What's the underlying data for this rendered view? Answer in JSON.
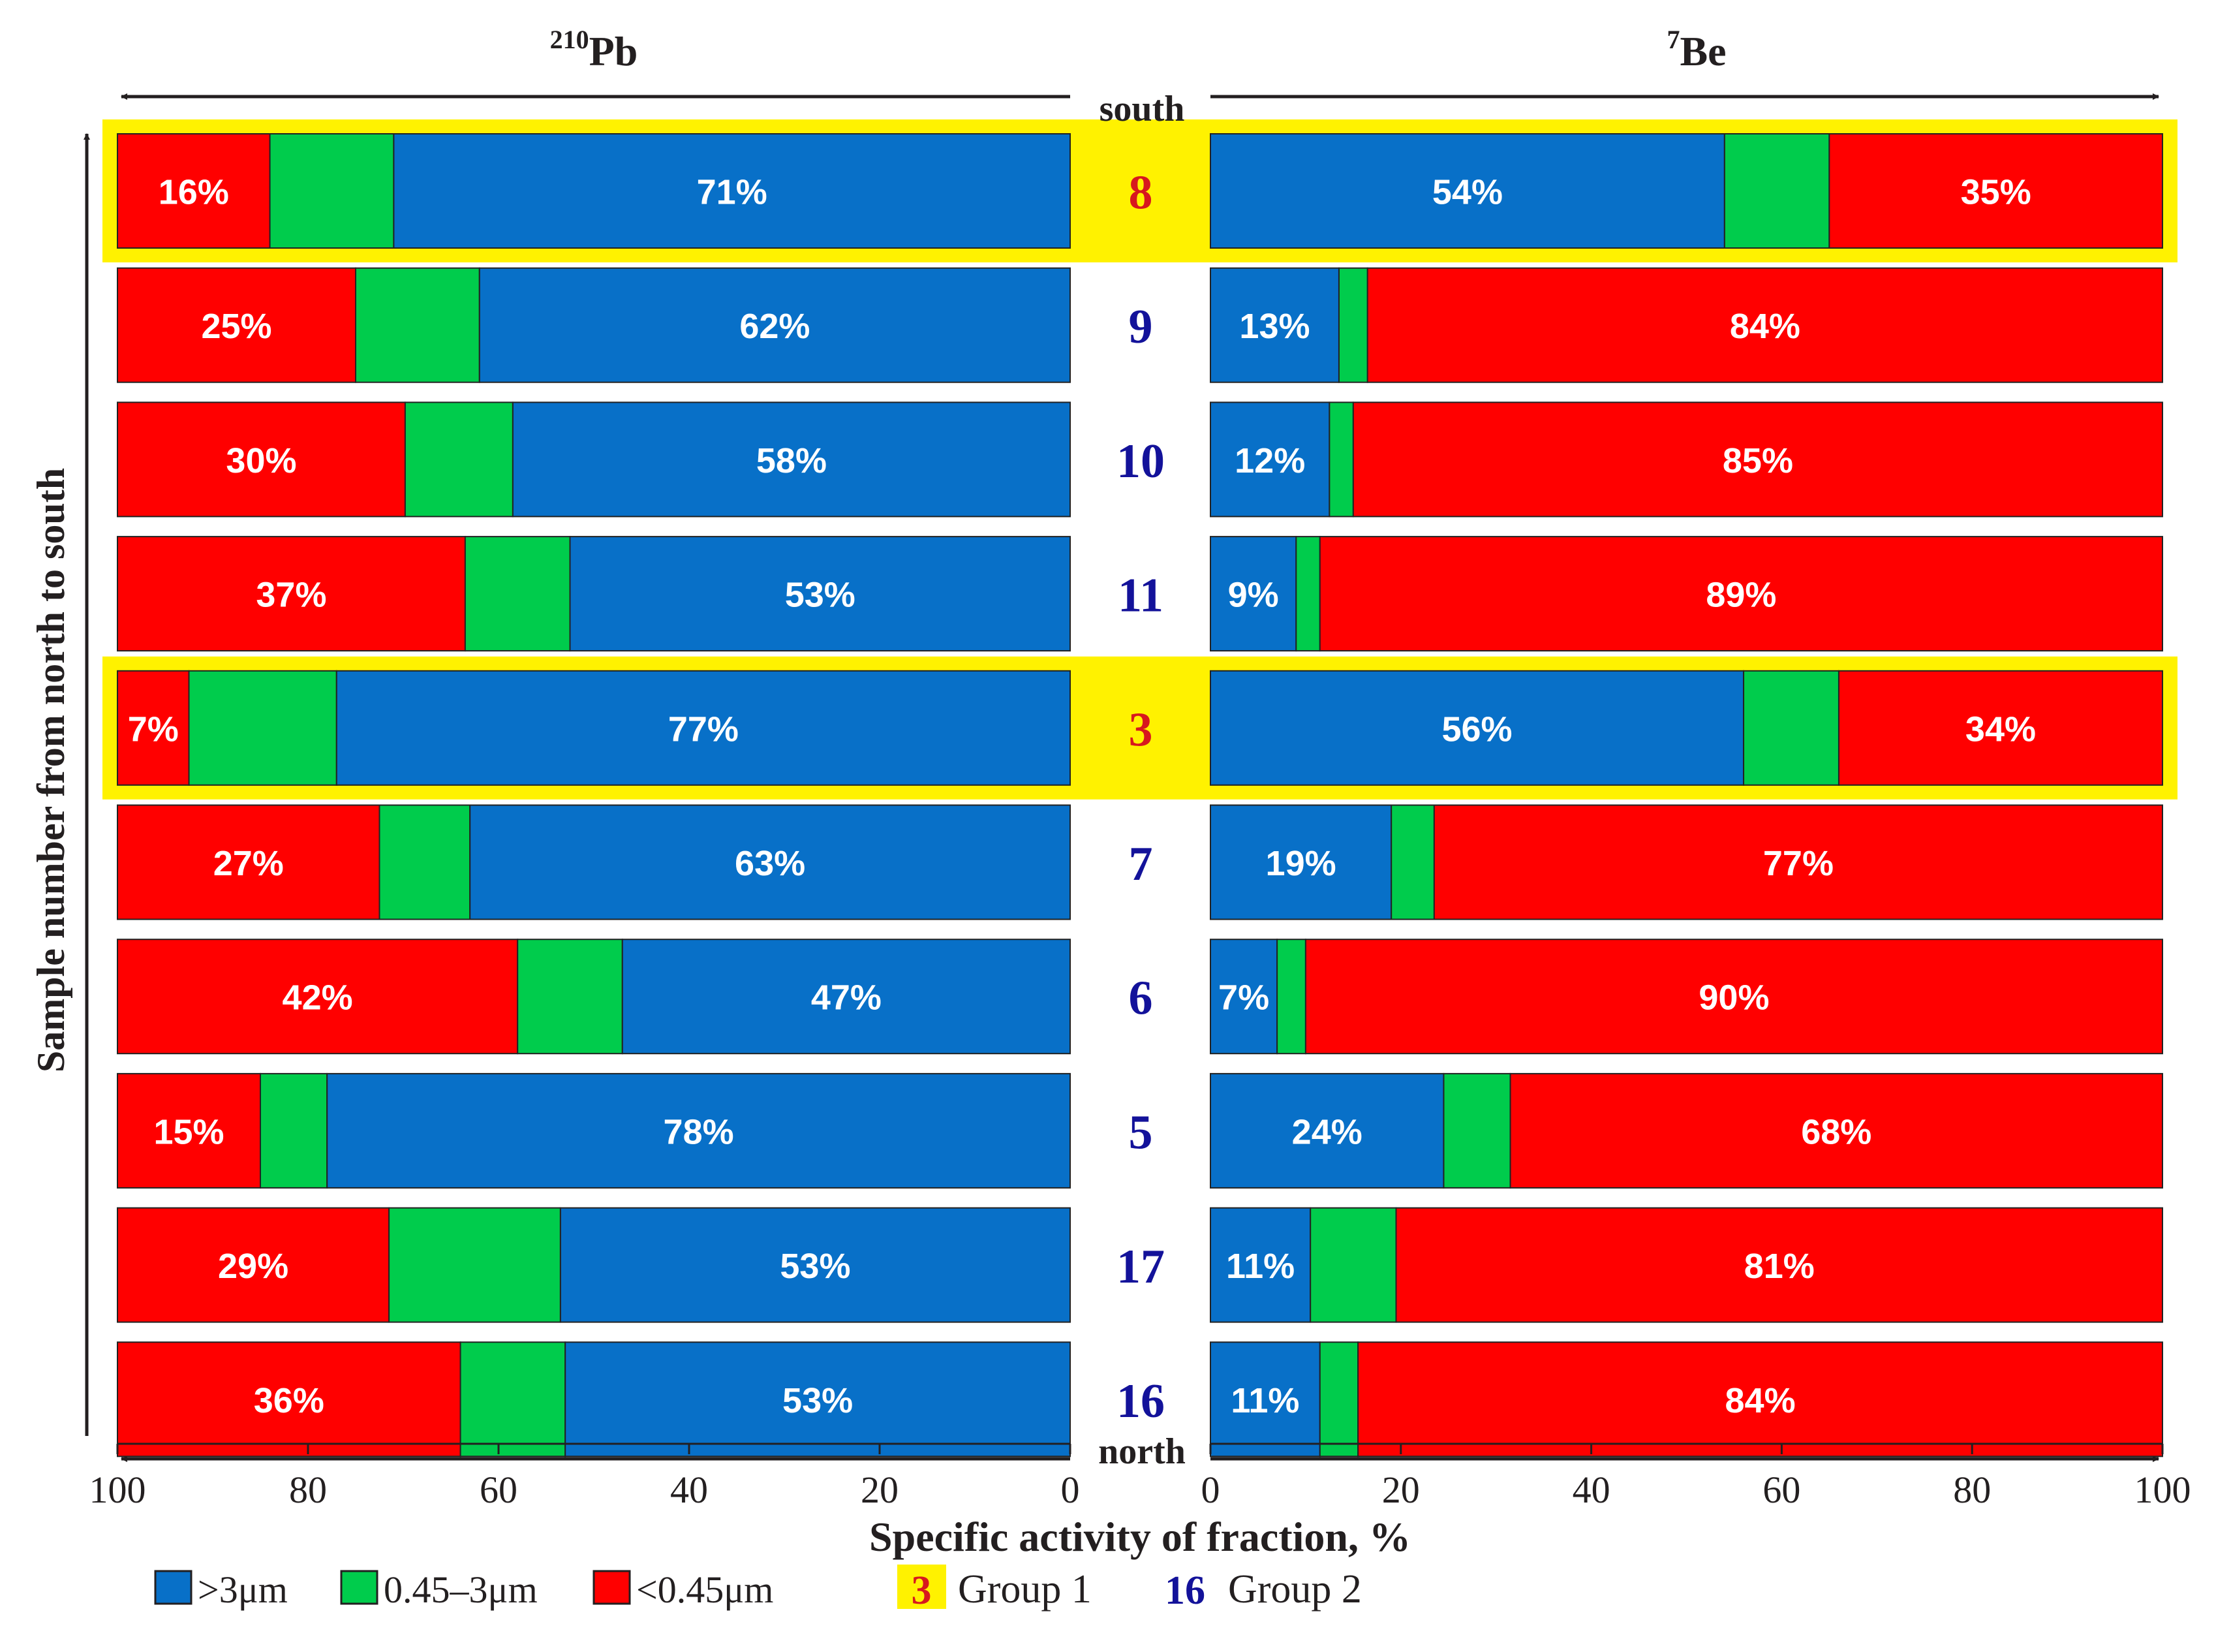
{
  "chart_data": {
    "type": "bar",
    "orientation": "horizontal-stacked",
    "xlabel": "Specific activity of fraction, %",
    "ylabel": "Sample number from north to south",
    "direction_labels": {
      "top": "south",
      "bottom": "north"
    },
    "xlim": [
      0,
      100
    ],
    "x_ticks": [
      0,
      20,
      40,
      60,
      80,
      100
    ],
    "panels": [
      {
        "key": "pb",
        "title_sup": "210",
        "title_main": "Pb"
      },
      {
        "key": "be",
        "title_sup": "7",
        "title_main": "Be"
      }
    ],
    "series_order": [
      ">3μm",
      "0.45–3μm",
      "<0.45μm"
    ],
    "colors": {
      ">3μm": "#0870c8",
      "0.45–3μm": "#00cc4c",
      "<0.45μm": "#ff0000"
    },
    "group_colors": {
      "1": "#d7181e",
      "2": "#13129a"
    },
    "highlight_color": "#fff200",
    "samples": [
      {
        "id": "8",
        "group": 1,
        "pb": {
          "gt3": 71,
          "mid": 13,
          "lt045": 16
        },
        "be": {
          "gt3": 54,
          "mid": 11,
          "lt045": 35
        },
        "labels": {
          "pb_gt3": "71%",
          "pb_lt045": "16%",
          "be_gt3": "54%",
          "be_lt045": "35%"
        }
      },
      {
        "id": "9",
        "group": 2,
        "pb": {
          "gt3": 62,
          "mid": 13,
          "lt045": 25
        },
        "be": {
          "gt3": 13.5,
          "mid": 3,
          "lt045": 83.5
        },
        "labels": {
          "pb_gt3": "62%",
          "pb_lt045": "25%",
          "be_gt3": "13%",
          "be_lt045": "84%"
        }
      },
      {
        "id": "10",
        "group": 2,
        "pb": {
          "gt3": 58.5,
          "mid": 11.3,
          "lt045": 30.2
        },
        "be": {
          "gt3": 12.5,
          "mid": 2.5,
          "lt045": 85
        },
        "labels": {
          "pb_gt3": "58%",
          "pb_lt045": "30%",
          "be_gt3": "12%",
          "be_lt045": "85%"
        }
      },
      {
        "id": "11",
        "group": 2,
        "pb": {
          "gt3": 52.5,
          "mid": 11,
          "lt045": 36.5
        },
        "be": {
          "gt3": 9,
          "mid": 2.5,
          "lt045": 88.5
        },
        "labels": {
          "pb_gt3": "53%",
          "pb_lt045": "37%",
          "be_gt3": "9%",
          "be_lt045": "89%"
        }
      },
      {
        "id": "3",
        "group": 1,
        "pb": {
          "gt3": 77,
          "mid": 15.5,
          "lt045": 7.5
        },
        "be": {
          "gt3": 56,
          "mid": 10,
          "lt045": 34
        },
        "labels": {
          "pb_gt3": "77%",
          "pb_lt045": "7%",
          "be_gt3": "56%",
          "be_lt045": "34%"
        }
      },
      {
        "id": "7",
        "group": 2,
        "pb": {
          "gt3": 63,
          "mid": 9.5,
          "lt045": 27.5
        },
        "be": {
          "gt3": 19,
          "mid": 4.5,
          "lt045": 76.5
        },
        "labels": {
          "pb_gt3": "63%",
          "pb_lt045": "27%",
          "be_gt3": "19%",
          "be_lt045": "77%"
        }
      },
      {
        "id": "6",
        "group": 2,
        "pb": {
          "gt3": 47,
          "mid": 11,
          "lt045": 42
        },
        "be": {
          "gt3": 7,
          "mid": 3,
          "lt045": 90
        },
        "labels": {
          "pb_gt3": "47%",
          "pb_lt045": "42%",
          "be_gt3": "7%",
          "be_lt045": "90%"
        }
      },
      {
        "id": "5",
        "group": 2,
        "pb": {
          "gt3": 78,
          "mid": 7,
          "lt045": 15
        },
        "be": {
          "gt3": 24.5,
          "mid": 7,
          "lt045": 68.5
        },
        "labels": {
          "pb_gt3": "78%",
          "pb_lt045": "15%",
          "be_gt3": "24%",
          "be_lt045": "68%"
        }
      },
      {
        "id": "17",
        "group": 2,
        "pb": {
          "gt3": 53.5,
          "mid": 18,
          "lt045": 28.5
        },
        "be": {
          "gt3": 10.5,
          "mid": 9,
          "lt045": 80.5
        },
        "labels": {
          "pb_gt3": "53%",
          "pb_lt045": "29%",
          "be_gt3": "11%",
          "be_lt045": "81%"
        }
      },
      {
        "id": "16",
        "group": 2,
        "pb": {
          "gt3": 53,
          "mid": 11,
          "lt045": 36
        },
        "be": {
          "gt3": 11.5,
          "mid": 4,
          "lt045": 84.5
        },
        "labels": {
          "pb_gt3": "53%",
          "pb_lt045": "36%",
          "be_gt3": "11%",
          "be_lt045": "84%"
        }
      }
    ],
    "legend": {
      "position": "bottom",
      "fractions": [
        {
          "key": "gt3",
          "label": ">3μm"
        },
        {
          "key": "mid",
          "label": "0.45–3μm"
        },
        {
          "key": "lt045",
          "label": "<0.45μm"
        }
      ],
      "groups": [
        {
          "sample": "3",
          "label": "Group 1"
        },
        {
          "sample": "16",
          "label": "Group 2"
        }
      ]
    }
  }
}
